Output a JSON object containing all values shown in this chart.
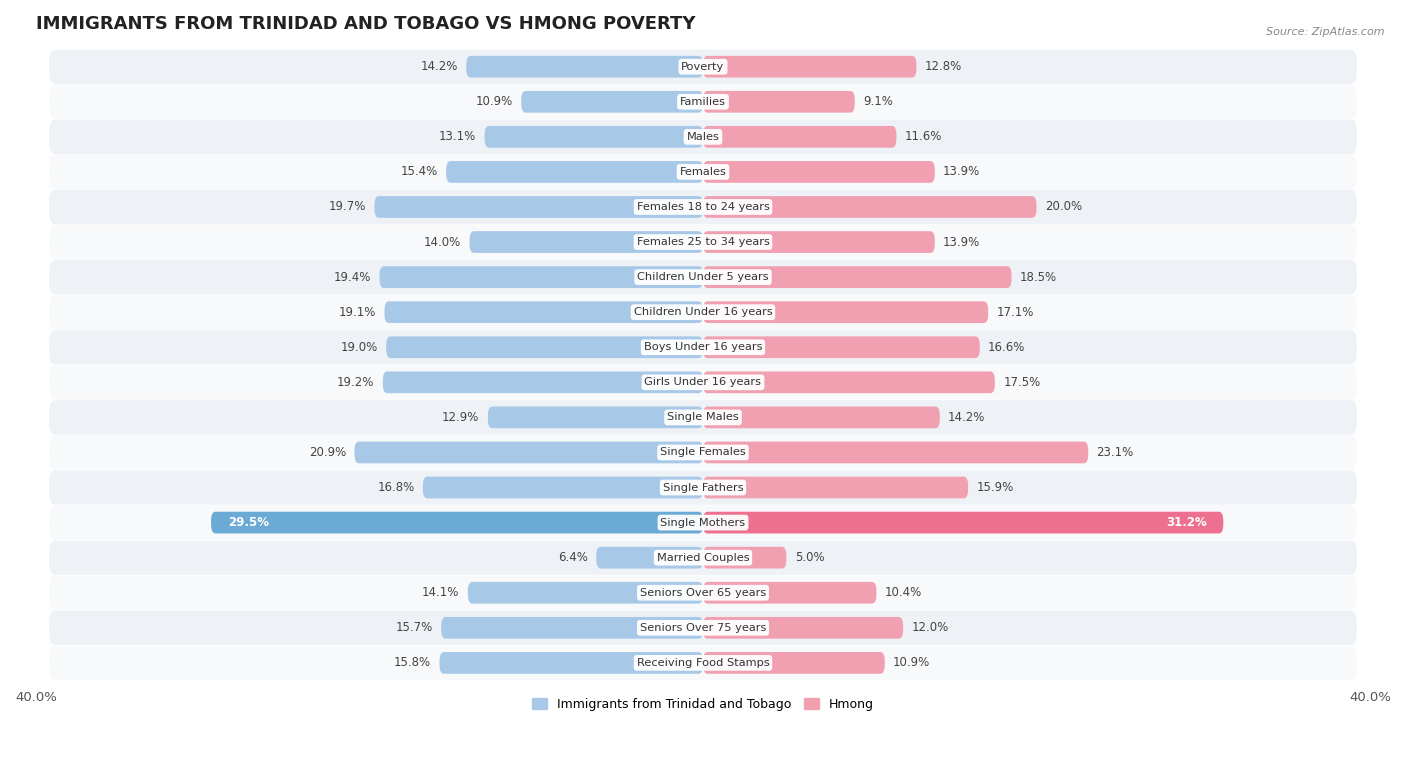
{
  "title": "IMMIGRANTS FROM TRINIDAD AND TOBAGO VS HMONG POVERTY",
  "source": "Source: ZipAtlas.com",
  "categories": [
    "Poverty",
    "Families",
    "Males",
    "Females",
    "Females 18 to 24 years",
    "Females 25 to 34 years",
    "Children Under 5 years",
    "Children Under 16 years",
    "Boys Under 16 years",
    "Girls Under 16 years",
    "Single Males",
    "Single Females",
    "Single Fathers",
    "Single Mothers",
    "Married Couples",
    "Seniors Over 65 years",
    "Seniors Over 75 years",
    "Receiving Food Stamps"
  ],
  "left_values": [
    14.2,
    10.9,
    13.1,
    15.4,
    19.7,
    14.0,
    19.4,
    19.1,
    19.0,
    19.2,
    12.9,
    20.9,
    16.8,
    29.5,
    6.4,
    14.1,
    15.7,
    15.8
  ],
  "right_values": [
    12.8,
    9.1,
    11.6,
    13.9,
    20.0,
    13.9,
    18.5,
    17.1,
    16.6,
    17.5,
    14.2,
    23.1,
    15.9,
    31.2,
    5.0,
    10.4,
    12.0,
    10.9
  ],
  "left_color": "#a8c8e8",
  "right_color": "#f0a0b0",
  "left_highlight_color": "#6aaad4",
  "right_highlight_color": "#ee7090",
  "highlight_row": 13,
  "xlim": 40.0,
  "bar_height": 0.62,
  "row_bg_even": "#eef2f7",
  "row_bg_odd": "#f8f9fb",
  "legend_left": "Immigrants from Trinidad and Tobago",
  "legend_right": "Hmong",
  "title_fontsize": 13,
  "label_fontsize": 8.2,
  "value_fontsize": 8.5,
  "axis_fontsize": 9.5
}
